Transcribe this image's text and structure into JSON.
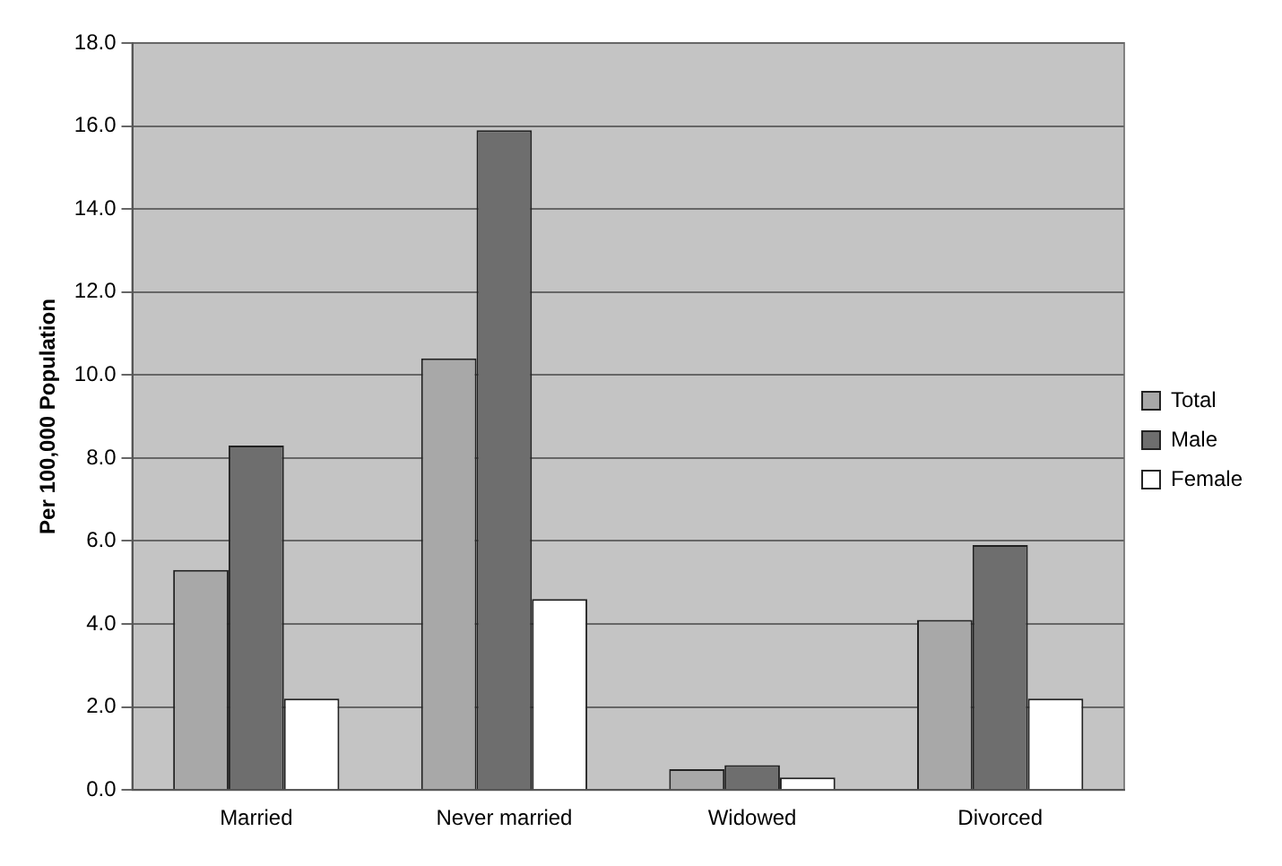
{
  "chart_data": {
    "type": "bar",
    "ylabel": "Per 100,000 Population",
    "categories": [
      "Married",
      "Never married",
      "Widowed",
      "Divorced"
    ],
    "series": [
      {
        "name": "Total",
        "color": "#a8a8a8",
        "values": [
          5.3,
          10.4,
          0.5,
          4.1
        ]
      },
      {
        "name": "Male",
        "color": "#6e6e6e",
        "values": [
          8.3,
          15.9,
          0.6,
          5.9
        ]
      },
      {
        "name": "Female",
        "color": "#ffffff",
        "values": [
          2.2,
          4.6,
          0.3,
          2.2
        ]
      }
    ],
    "ylim": [
      0,
      18
    ],
    "yticks": [
      {
        "value": 0,
        "label": "0.0"
      },
      {
        "value": 2,
        "label": "2.0"
      },
      {
        "value": 4,
        "label": "4.0"
      },
      {
        "value": 6,
        "label": "6.0"
      },
      {
        "value": 8,
        "label": "8.0"
      },
      {
        "value": 10,
        "label": "10.0"
      },
      {
        "value": 12,
        "label": "12.0"
      },
      {
        "value": 14,
        "label": "14.0"
      },
      {
        "value": 16,
        "label": "16.0"
      },
      {
        "value": 18,
        "label": "18.0"
      }
    ],
    "grid": "y",
    "legend": "right"
  }
}
